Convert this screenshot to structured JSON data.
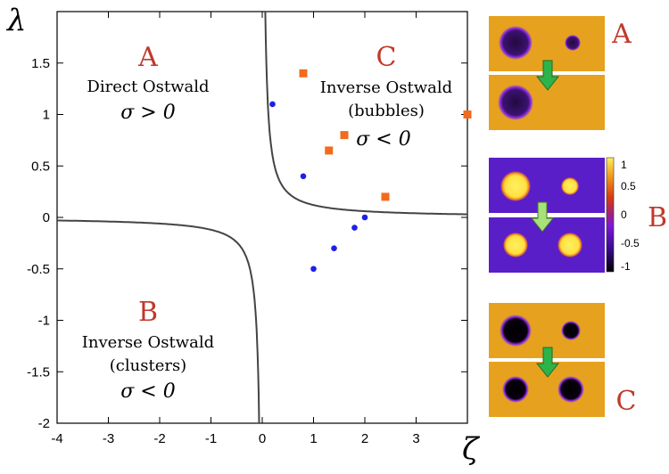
{
  "chart_data": {
    "type": "scatter",
    "xlabel": "ζ",
    "ylabel": "λ",
    "xlim": [
      -4,
      4
    ],
    "ylim": [
      -2,
      2
    ],
    "x_ticks": [
      "-4",
      "-3",
      "-2",
      "-1",
      "0",
      "1",
      "2",
      "3"
    ],
    "y_ticks": [
      "-2",
      "-1.5",
      "-1",
      "-0.5",
      "0",
      "0.5",
      "1",
      "1.5"
    ],
    "series": [
      {
        "marker": "circle",
        "color": "#1f1fe6",
        "points": [
          [
            0.2,
            1.1
          ],
          [
            0.8,
            0.4
          ],
          [
            1.8,
            -0.1
          ],
          [
            2.0,
            0.0
          ],
          [
            1.4,
            -0.3
          ],
          [
            1.0,
            -0.5
          ]
        ]
      },
      {
        "marker": "square",
        "color": "#f26b1d",
        "points": [
          [
            0.8,
            1.4
          ],
          [
            1.3,
            0.65
          ],
          [
            1.6,
            0.8
          ],
          [
            2.4,
            0.2
          ],
          [
            4.0,
            1.0
          ]
        ]
      }
    ],
    "boundary_curve": {
      "equation": "λζ = 0.12",
      "color": "#444444"
    },
    "regions": [
      {
        "letter": "A",
        "label": "Direct Ostwald",
        "condition": "σ > 0"
      },
      {
        "letter": "B",
        "label_lines": [
          "Inverse Ostwald",
          "(clusters)"
        ],
        "condition": "σ < 0"
      },
      {
        "letter": "C",
        "label_lines": [
          "Inverse Ostwald",
          "(bubbles)"
        ],
        "condition": "σ < 0"
      }
    ],
    "colorbar": {
      "ticks": [
        "1",
        "0.5",
        "0",
        "-0.5",
        "-1"
      ],
      "range": [
        -1,
        1
      ]
    },
    "snapshot_panels": [
      {
        "letter": "A",
        "background": "#e6a21e"
      },
      {
        "letter": "B",
        "background": "#5a1ec8"
      },
      {
        "letter": "C",
        "background": "#e6a21e"
      }
    ]
  }
}
